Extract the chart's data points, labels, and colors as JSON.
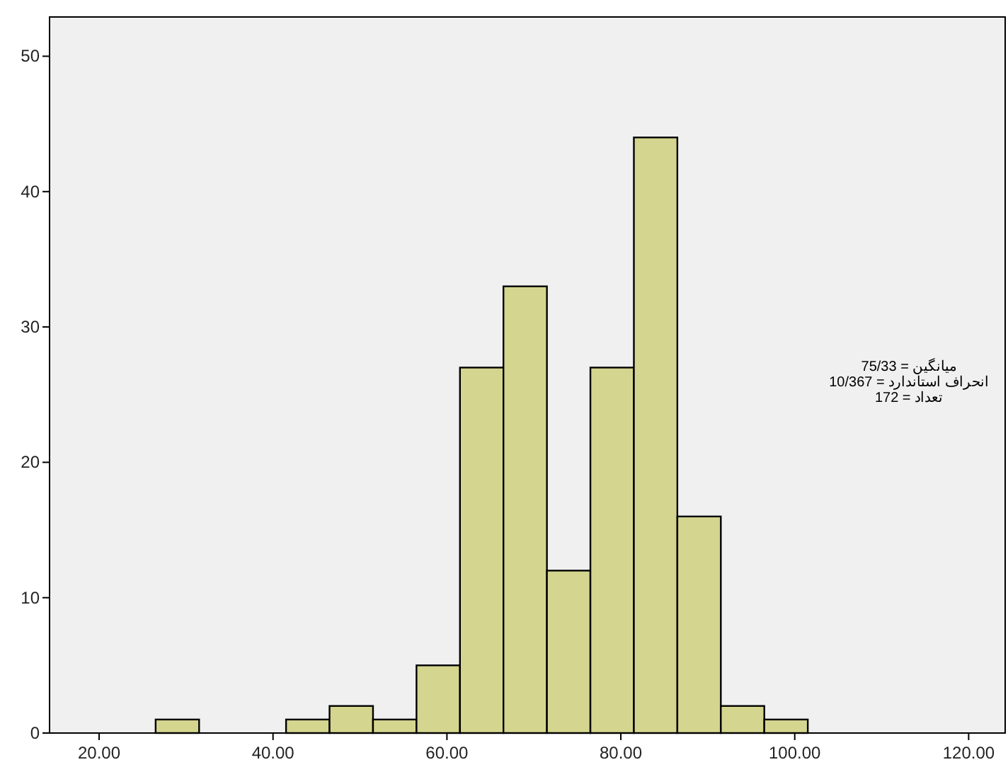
{
  "chart_data": {
    "type": "histogram",
    "bins": [
      26.5,
      31.5,
      36.5,
      41.5,
      46.5,
      51.5,
      56.5,
      61.5,
      66.5,
      71.5,
      76.5,
      81.5,
      86.5,
      91.5,
      96.5,
      101.5
    ],
    "values": [
      1,
      0,
      0,
      1,
      2,
      1,
      5,
      27,
      33,
      12,
      27,
      44,
      16,
      2,
      1
    ],
    "color": "#d4d68f",
    "xlim": [
      14.3,
      124.2
    ],
    "ylim": [
      0,
      52.9
    ],
    "xticks": [
      {
        "value": 20,
        "label": "20.00"
      },
      {
        "value": 40,
        "label": "40.00"
      },
      {
        "value": 60,
        "label": "60.00"
      },
      {
        "value": 80,
        "label": "80.00"
      },
      {
        "value": 100,
        "label": "100.00"
      },
      {
        "value": 120,
        "label": "120.00"
      }
    ],
    "yticks": [
      0,
      10,
      20,
      30,
      40,
      50
    ],
    "grid": false,
    "annotations": [
      "میانگین = 75/33",
      "انحراف استاندارد = 10/367",
      "تعداد = 172"
    ]
  }
}
